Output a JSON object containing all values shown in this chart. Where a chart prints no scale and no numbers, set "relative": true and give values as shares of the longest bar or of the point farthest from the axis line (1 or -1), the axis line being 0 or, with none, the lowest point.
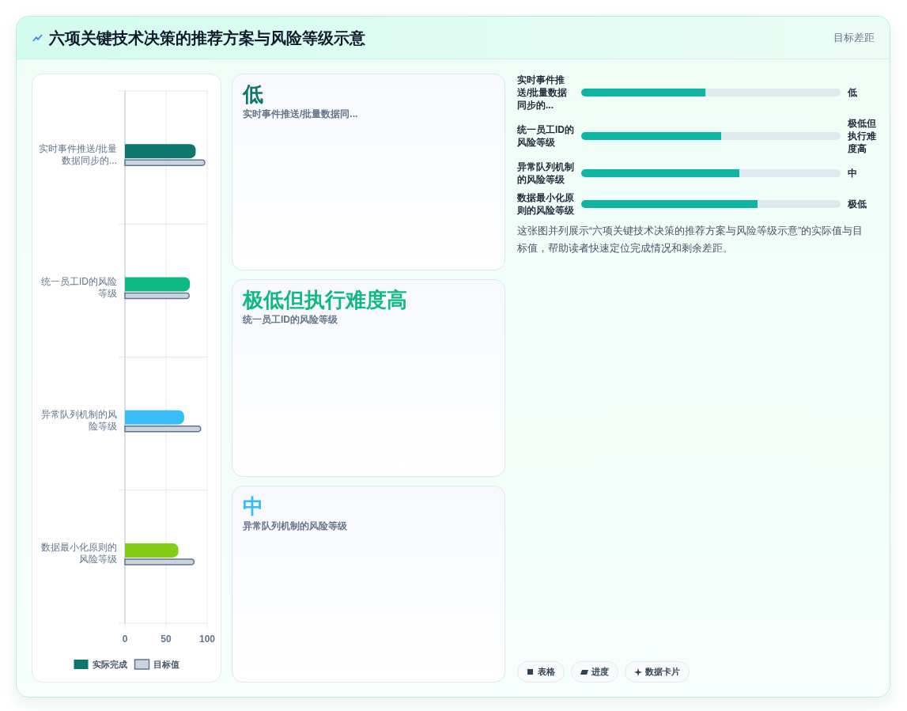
{
  "chart_data": [
    {
      "type": "other",
      "title": "六项关键技术决策的推荐方案与风险等级示意",
      "annotations": [
        "目标差距"
      ]
    },
    {
      "type": "bar",
      "orientation": "horizontal",
      "categories": [
        "实时事件推送/批量数据同步的...",
        "统一员工ID的风险等级",
        "异常队列机制的风险等级",
        "数据最小化原则的风险等级"
      ],
      "series": [
        {
          "name": "实际完成",
          "color": "#0f766e",
          "colors": [
            "#0f766e",
            "#10b981",
            "#38bdf8",
            "#84cc16"
          ],
          "values": [
            86,
            79,
            72,
            65
          ]
        },
        {
          "name": "目标值",
          "color": "#cbd5e1",
          "values": [
            97,
            78,
            92,
            84
          ]
        }
      ],
      "xlim": [
        0,
        100
      ],
      "xticks": [
        0,
        50,
        100
      ],
      "grid": true,
      "legend": "bottom"
    },
    {
      "type": "other",
      "categories": [
        "实时事件推送/批量数据同...",
        "统一员工ID的风险等级",
        "异常队列机制的风险等级"
      ],
      "value_labels": [
        "低",
        "极低但执行难度高",
        "中"
      ]
    },
    {
      "type": "bar",
      "orientation": "horizontal",
      "relative": true,
      "stacked": true,
      "categories": [
        "实时事件推送/批量数据同步的...",
        "统一员工ID的风险等级",
        "异常队列机制的风险等级",
        "数据最小化原则的风险等级"
      ],
      "series": [
        {
          "color": "#0fb5a3",
          "values": [
            0.48,
            0.54,
            0.61,
            0.68
          ]
        },
        {
          "color": "#e2e8f0",
          "values": [
            0.52,
            0.46,
            0.39,
            0.32
          ]
        }
      ],
      "annotations": [
        "低",
        "极低但执行难度高",
        "中",
        "极低",
        "这张图并列展示“六项关键技术决策的推荐方案与风险等级示意”的实际值与目标值，帮助读者快速定位完成情况和剩余差距。"
      ]
    },
    {
      "type": "other",
      "annotations": [
        "表格",
        "进度",
        "数据卡片"
      ]
    }
  ]
}
